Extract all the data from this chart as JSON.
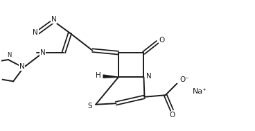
{
  "background": "#ffffff",
  "line_color": "#1a1a1a",
  "line_width": 1.4,
  "font_size": 7.5,
  "figsize": [
    3.68,
    1.89
  ],
  "dpi": 100,
  "xlim": [
    0,
    7.0
  ],
  "ylim": [
    0,
    3.6
  ]
}
